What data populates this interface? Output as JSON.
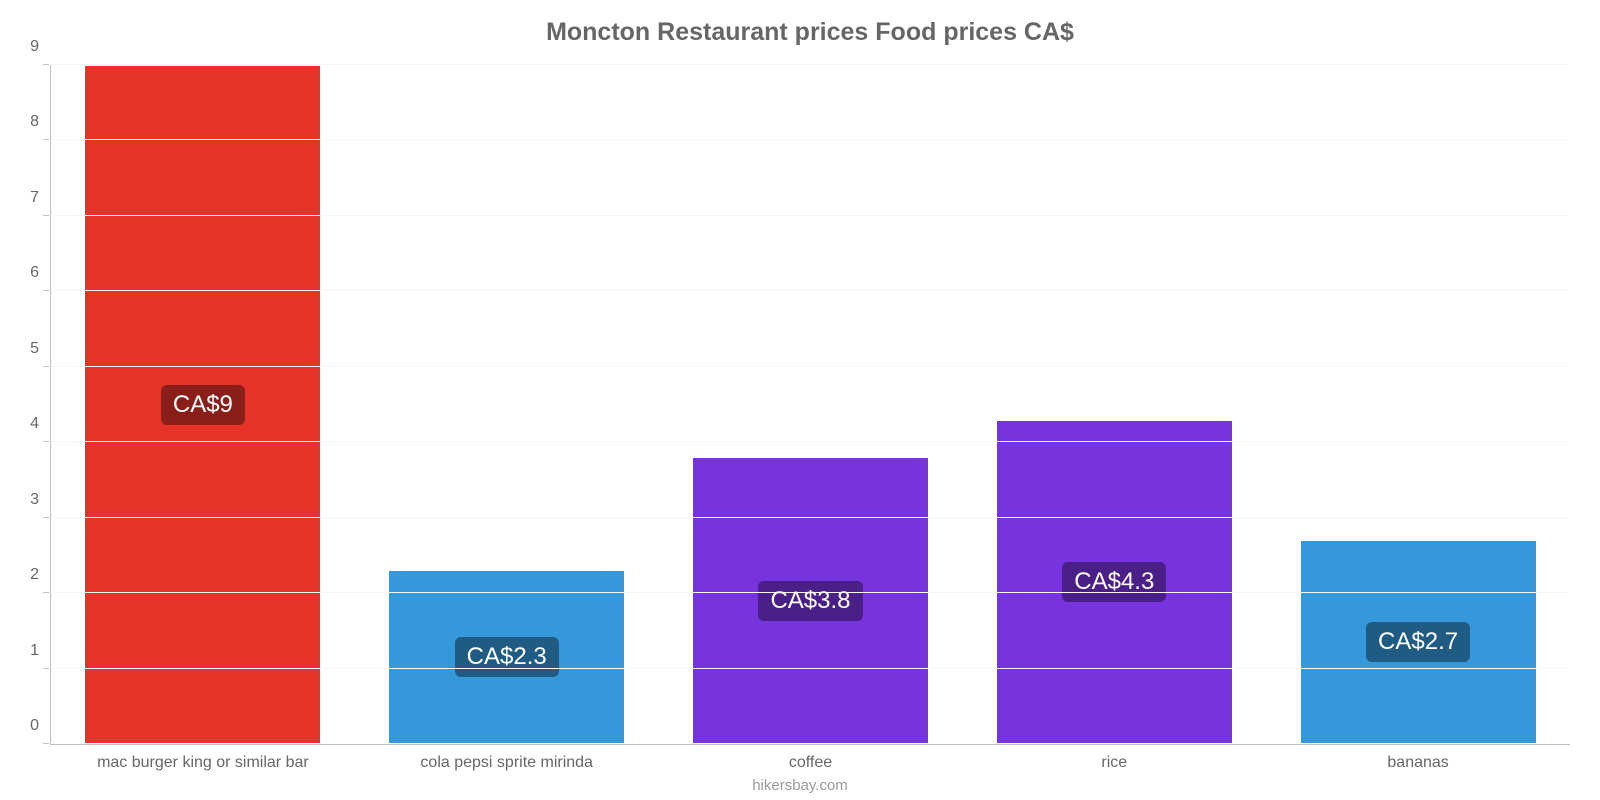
{
  "chart": {
    "type": "bar",
    "title": "Moncton Restaurant prices Food prices CA$",
    "title_fontsize": 25,
    "title_color": "#666666",
    "background_color": "#ffffff",
    "grid_color": "#f7f7f7",
    "axis_color": "#c0c0c0",
    "label_color": "#666666",
    "label_fontsize": 16,
    "credit": "hikersbay.com",
    "credit_color": "#999999",
    "ylim": [
      0,
      9
    ],
    "yticks": [
      0,
      1,
      2,
      3,
      4,
      5,
      6,
      7,
      8,
      9
    ],
    "bar_width": 0.78,
    "categories": [
      "mac burger king or similar bar",
      "cola pepsi sprite mirinda",
      "coffee",
      "rice",
      "bananas"
    ],
    "values": [
      9,
      2.3,
      3.8,
      4.3,
      2.7
    ],
    "bar_colors": [
      "#e6332a",
      "#3498db",
      "#7733dd",
      "#7733dd",
      "#3498db"
    ],
    "value_labels": [
      "CA$9",
      "CA$2.3",
      "CA$3.8",
      "CA$4.3",
      "CA$2.7"
    ],
    "badge_colors": [
      "#8a1f1a",
      "#1f5b83",
      "#4a1f87",
      "#4a1f87",
      "#1f5b83"
    ],
    "badge_fontsize": 24
  }
}
